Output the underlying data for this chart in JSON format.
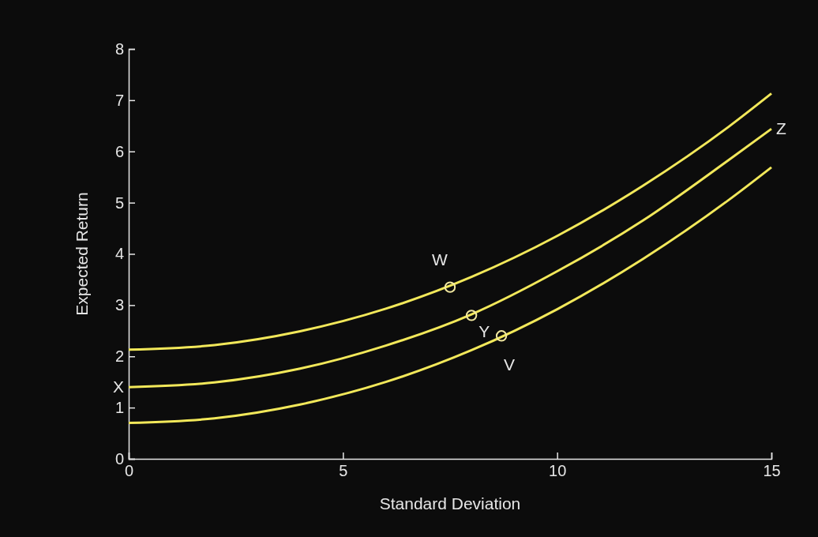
{
  "chart_data": {
    "type": "line",
    "xlabel": "Standard Deviation",
    "ylabel": "Expected Return",
    "xlim": [
      0,
      15
    ],
    "ylim": [
      0,
      8
    ],
    "xticks": [
      0,
      5,
      10,
      15
    ],
    "yticks": [
      0,
      1,
      2,
      3,
      4,
      5,
      6,
      7,
      8
    ],
    "grid": false,
    "series": [
      {
        "color": "#f2e85a",
        "x": [
          0,
          2,
          4,
          6,
          8,
          10,
          12,
          14,
          15
        ],
        "values": [
          2.13,
          2.22,
          2.49,
          2.93,
          3.55,
          4.35,
          5.33,
          6.48,
          7.13
        ]
      },
      {
        "color": "#f2e85a",
        "x": [
          0,
          2,
          4,
          6,
          8,
          10,
          12,
          14,
          15
        ],
        "values": [
          1.4,
          1.49,
          1.76,
          2.21,
          2.82,
          3.66,
          4.65,
          5.83,
          6.44
        ]
      },
      {
        "color": "#f2e85a",
        "x": [
          0,
          2,
          4,
          6,
          8,
          10,
          12,
          14,
          15
        ],
        "values": [
          0.7,
          0.79,
          1.06,
          1.5,
          2.12,
          2.92,
          3.9,
          5.05,
          5.69
        ]
      },
      {
        "type": "scatter",
        "marker": "circle",
        "color": "#f2e8a0",
        "x": [
          7.5,
          8.0,
          8.7
        ],
        "values": [
          3.35,
          2.8,
          2.4
        ]
      }
    ],
    "annotations": [
      {
        "text": "W",
        "x": 7.5,
        "y": 3.35
      },
      {
        "text": "Y",
        "x": 8.0,
        "y": 2.8
      },
      {
        "text": "V",
        "x": 8.7,
        "y": 2.4
      },
      {
        "text": "X",
        "x": 0,
        "y": 1.4
      },
      {
        "text": "Z",
        "x": 15,
        "y": 6.44
      }
    ]
  }
}
